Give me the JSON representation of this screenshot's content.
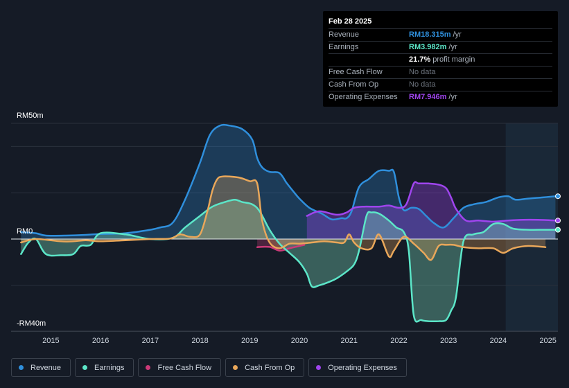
{
  "tooltip": {
    "date": "Feb 28 2025",
    "rows": [
      {
        "label": "Revenue",
        "value": "RM18.315m",
        "unit": "/yr",
        "color": "#2f8fdc"
      },
      {
        "label": "Earnings",
        "value": "RM3.982m",
        "unit": "/yr",
        "color": "#5ce6c8"
      },
      {
        "label": "",
        "value": "21.7%",
        "unit": "profit margin",
        "color": "#ffffff"
      },
      {
        "label": "Free Cash Flow",
        "value": "No data",
        "unit": "",
        "color": ""
      },
      {
        "label": "Cash From Op",
        "value": "No data",
        "unit": "",
        "color": ""
      },
      {
        "label": "Operating Expenses",
        "value": "RM7.946m",
        "unit": "/yr",
        "color": "#9f45ee"
      }
    ]
  },
  "legend": [
    {
      "label": "Revenue",
      "color": "#2f8fdc"
    },
    {
      "label": "Earnings",
      "color": "#5ce6c8"
    },
    {
      "label": "Free Cash Flow",
      "color": "#cc3a78"
    },
    {
      "label": "Cash From Op",
      "color": "#e9a75a"
    },
    {
      "label": "Operating Expenses",
      "color": "#9f45ee"
    }
  ],
  "chart_data": {
    "type": "area",
    "title": "Feb 28 2025",
    "y_unit": "RM m",
    "ylim": [
      -40,
      50
    ],
    "y_tick_labels": [
      "RM50m",
      "RM0",
      "-RM40m"
    ],
    "y_tick_values": [
      50,
      0,
      -40
    ],
    "x_tick_labels": [
      "2015",
      "2016",
      "2017",
      "2018",
      "2019",
      "2020",
      "2021",
      "2022",
      "2023",
      "2024",
      "2025"
    ],
    "x_tick_values": [
      2015,
      2016,
      2017,
      2018,
      2019,
      2020,
      2021,
      2022,
      2023,
      2024,
      2025
    ],
    "xlim": [
      2014.2,
      2025.2
    ],
    "forecast_start": 2024.15,
    "series": [
      {
        "name": "Revenue",
        "color": "#2f8fdc",
        "x": [
          2014.4,
          2014.7,
          2014.9,
          2015.3,
          2015.7,
          2016.0,
          2016.5,
          2017.0,
          2017.2,
          2017.45,
          2017.7,
          2018.0,
          2018.2,
          2018.4,
          2018.6,
          2018.85,
          2019.05,
          2019.15,
          2019.25,
          2019.4,
          2019.6,
          2019.75,
          2019.9,
          2020.0,
          2020.2,
          2020.45,
          2020.65,
          2020.85,
          2020.95,
          2021.05,
          2021.2,
          2021.4,
          2021.6,
          2021.8,
          2021.9,
          2022.0,
          2022.1,
          2022.25,
          2022.4,
          2022.55,
          2022.7,
          2022.9,
          2023.1,
          2023.3,
          2023.5,
          2023.75,
          2024.0,
          2024.2,
          2024.35,
          2024.6,
          2024.9,
          2025.15
        ],
        "y": [
          3.0,
          2.5,
          1.5,
          1.5,
          1.8,
          2.2,
          2.5,
          4.0,
          5.0,
          7.0,
          17.0,
          33.0,
          45.0,
          49.0,
          49.0,
          47.5,
          43.0,
          35.0,
          31.0,
          29.0,
          28.5,
          24.0,
          20.0,
          17.5,
          13.5,
          11.0,
          8.5,
          9.0,
          9.0,
          12.0,
          22.5,
          26.0,
          29.5,
          29.5,
          29.0,
          18.0,
          12.5,
          13.5,
          13.0,
          10.0,
          7.0,
          5.0,
          9.0,
          13.5,
          15.0,
          16.0,
          18.0,
          18.5,
          17.0,
          17.5,
          18.0,
          18.5
        ]
      },
      {
        "name": "Earnings",
        "color": "#5ce6c8",
        "x": [
          2014.4,
          2014.55,
          2014.7,
          2014.9,
          2015.2,
          2015.45,
          2015.6,
          2015.8,
          2016.0,
          2016.5,
          2017.0,
          2017.45,
          2017.7,
          2018.0,
          2018.25,
          2018.5,
          2018.7,
          2018.85,
          2019.05,
          2019.2,
          2019.4,
          2019.6,
          2019.8,
          2020.0,
          2020.15,
          2020.25,
          2020.4,
          2020.6,
          2020.75,
          2020.95,
          2021.1,
          2021.2,
          2021.35,
          2021.45,
          2021.6,
          2021.8,
          2021.95,
          2022.1,
          2022.2,
          2022.3,
          2022.45,
          2022.6,
          2022.8,
          2022.95,
          2023.05,
          2023.15,
          2023.3,
          2023.5,
          2023.7,
          2023.9,
          2024.1,
          2024.3,
          2024.6,
          2024.9,
          2025.15
        ],
        "y": [
          -6.5,
          -1.5,
          0.0,
          -6.5,
          -7.0,
          -6.5,
          -3.0,
          -2.5,
          2.5,
          2.0,
          0.0,
          0.5,
          5.0,
          10.0,
          14.0,
          16.0,
          17.0,
          16.0,
          15.0,
          12.0,
          4.0,
          -2.0,
          -6.0,
          -10.0,
          -15.0,
          -20.5,
          -20.0,
          -18.5,
          -17.0,
          -14.0,
          -11.0,
          -5.0,
          10.0,
          11.5,
          11.0,
          8.0,
          5.0,
          3.0,
          -5.0,
          -33.0,
          -35.0,
          -35.5,
          -35.5,
          -35.0,
          -31.0,
          -25.0,
          -1.0,
          2.0,
          3.0,
          6.5,
          6.5,
          4.5,
          4.0,
          4.0,
          4.0
        ]
      },
      {
        "name": "Free Cash Flow",
        "color": "#cc3a78",
        "x": [
          2019.15,
          2019.4,
          2019.6,
          2019.8,
          2020.0,
          2020.1
        ],
        "y": [
          -3.5,
          -3.4,
          -5.0,
          -4.0,
          -3.0,
          -2.5
        ]
      },
      {
        "name": "Cash From Op",
        "color": "#e9a75a",
        "x": [
          2014.4,
          2014.7,
          2015.2,
          2015.45,
          2015.7,
          2016.0,
          2016.5,
          2017.0,
          2017.4,
          2017.6,
          2017.8,
          2018.0,
          2018.15,
          2018.25,
          2018.35,
          2018.45,
          2018.6,
          2018.8,
          2019.0,
          2019.15,
          2019.25,
          2019.4,
          2019.6,
          2019.8,
          2020.0,
          2020.25,
          2020.5,
          2020.75,
          2020.9,
          2021.0,
          2021.1,
          2021.25,
          2021.45,
          2021.6,
          2021.8,
          2021.9,
          2022.1,
          2022.3,
          2022.5,
          2022.65,
          2022.8,
          2022.95,
          2023.1,
          2023.3,
          2023.6,
          2023.9,
          2024.1,
          2024.3,
          2024.6,
          2024.95
        ],
        "y": [
          -1.5,
          0.0,
          -1.0,
          -1.0,
          -0.5,
          -1.0,
          -0.5,
          0.0,
          0.2,
          2.0,
          1.0,
          2.0,
          12.0,
          21.0,
          26.0,
          27.0,
          27.0,
          26.5,
          25.0,
          24.0,
          8.0,
          -1.5,
          -4.0,
          -2.0,
          -2.0,
          -1.5,
          -1.0,
          -1.5,
          -1.5,
          2.0,
          -1.5,
          -4.0,
          -4.0,
          2.0,
          -7.5,
          -5.0,
          1.0,
          -2.0,
          -6.0,
          -9.0,
          -3.0,
          -2.5,
          -2.5,
          -3.5,
          -4.0,
          -4.0,
          -6.0,
          -4.0,
          -3.0,
          -3.5
        ]
      },
      {
        "name": "Operating Expenses",
        "color": "#9f45ee",
        "x": [
          2020.15,
          2020.4,
          2020.75,
          2020.95,
          2021.1,
          2021.3,
          2021.6,
          2021.8,
          2022.0,
          2022.15,
          2022.3,
          2022.4,
          2022.6,
          2022.8,
          2022.95,
          2023.05,
          2023.15,
          2023.35,
          2023.6,
          2023.9,
          2024.2,
          2024.5,
          2024.8,
          2025.15
        ],
        "y": [
          10.0,
          12.0,
          10.5,
          11.5,
          13.5,
          14.0,
          14.0,
          14.5,
          13.5,
          15.0,
          24.0,
          24.0,
          24.0,
          23.5,
          22.0,
          18.0,
          13.0,
          8.0,
          8.0,
          7.5,
          8.0,
          8.3,
          8.3,
          8.0
        ]
      }
    ]
  }
}
